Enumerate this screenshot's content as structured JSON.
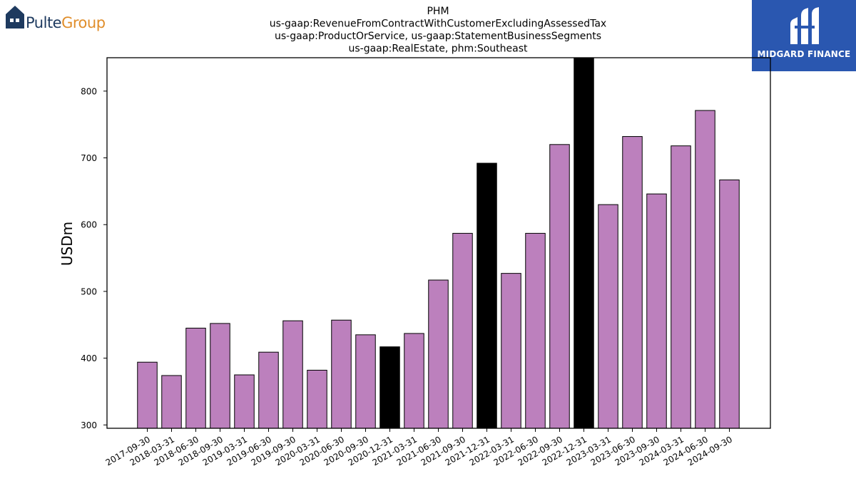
{
  "logos": {
    "left": {
      "part1": "Pulte",
      "part2": "Group",
      "color1": "#1e3a5f",
      "color2": "#e08e2b"
    },
    "right": {
      "text": "MIDGARD FINANCE",
      "background": "#2a57b0"
    }
  },
  "chart_data": {
    "type": "bar",
    "title_lines": [
      "PHM",
      "us-gaap:RevenueFromContractWithCustomerExcludingAssessedTax",
      "us-gaap:ProductOrService, us-gaap:StatementBusinessSegments",
      "us-gaap:RealEstate, phm:Southeast"
    ],
    "xlabel": "",
    "ylabel": "USDm",
    "ylim": [
      295,
      850
    ],
    "yticks": [
      300,
      400,
      500,
      600,
      700,
      800
    ],
    "categories": [
      "2017-09-30",
      "2018-03-31",
      "2018-06-30",
      "2018-09-30",
      "2019-03-31",
      "2019-06-30",
      "2019-09-30",
      "2020-03-31",
      "2020-06-30",
      "2020-09-30",
      "2020-12-31",
      "2021-03-31",
      "2021-06-30",
      "2021-09-30",
      "2021-12-31",
      "2022-03-31",
      "2022-06-30",
      "2022-09-30",
      "2022-12-31",
      "2023-03-31",
      "2023-06-30",
      "2023-09-30",
      "2024-03-31",
      "2024-06-30",
      "2024-09-30"
    ],
    "values": [
      394,
      374,
      445,
      452,
      375,
      409,
      456,
      382,
      457,
      435,
      417,
      437,
      517,
      587,
      692,
      527,
      587,
      720,
      850,
      630,
      732,
      646,
      718,
      771,
      667
    ],
    "highlight": [
      false,
      false,
      false,
      false,
      false,
      false,
      false,
      false,
      false,
      false,
      true,
      false,
      false,
      false,
      true,
      false,
      false,
      false,
      true,
      false,
      false,
      false,
      false,
      false,
      false
    ],
    "colors": {
      "bar": "#bc80bd",
      "highlight": "#000000",
      "edge": "#000000"
    },
    "grid": false,
    "legend": "none"
  }
}
